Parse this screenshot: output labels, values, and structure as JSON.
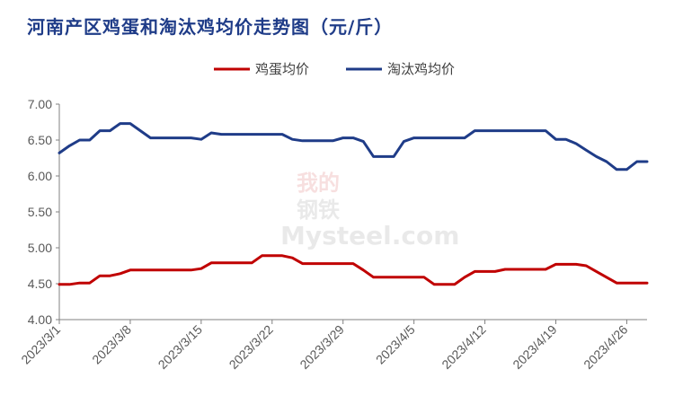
{
  "chart_data": {
    "type": "line",
    "title": "河南产区鸡蛋和淘汰鸡均价走势图（元/斤）",
    "ylim": [
      4.0,
      7.0
    ],
    "yticks": [
      "4.00",
      "4.50",
      "5.00",
      "5.50",
      "6.00",
      "6.50",
      "7.00"
    ],
    "xticks": [
      "2023/3/1",
      "2023/3/8",
      "2023/3/15",
      "2023/3/22",
      "2023/3/29",
      "2023/4/5",
      "2023/4/12",
      "2023/4/19",
      "2023/4/26"
    ],
    "x_range": [
      "2023-03-01",
      "2023-04-28"
    ],
    "legend_position": "top",
    "grid": false,
    "watermark": "Mysteel.com 我的钢铁",
    "series": [
      {
        "name": "鸡蛋均价",
        "color": "#c00000",
        "x": [
          "2023-03-01",
          "2023-03-02",
          "2023-03-03",
          "2023-03-04",
          "2023-03-05",
          "2023-03-06",
          "2023-03-07",
          "2023-03-08",
          "2023-03-09",
          "2023-03-10",
          "2023-03-11",
          "2023-03-12",
          "2023-03-13",
          "2023-03-14",
          "2023-03-15",
          "2023-03-16",
          "2023-03-17",
          "2023-03-18",
          "2023-03-19",
          "2023-03-20",
          "2023-03-21",
          "2023-03-22",
          "2023-03-23",
          "2023-03-24",
          "2023-03-25",
          "2023-03-26",
          "2023-03-27",
          "2023-03-28",
          "2023-03-29",
          "2023-03-30",
          "2023-03-31",
          "2023-04-01",
          "2023-04-02",
          "2023-04-03",
          "2023-04-04",
          "2023-04-05",
          "2023-04-06",
          "2023-04-07",
          "2023-04-08",
          "2023-04-09",
          "2023-04-10",
          "2023-04-11",
          "2023-04-12",
          "2023-04-13",
          "2023-04-14",
          "2023-04-15",
          "2023-04-16",
          "2023-04-17",
          "2023-04-18",
          "2023-04-19",
          "2023-04-20",
          "2023-04-21",
          "2023-04-22",
          "2023-04-23",
          "2023-04-24",
          "2023-04-25",
          "2023-04-26",
          "2023-04-27",
          "2023-04-28"
        ],
        "values": [
          4.49,
          4.49,
          4.51,
          4.51,
          4.61,
          4.61,
          4.64,
          4.69,
          4.69,
          4.69,
          4.69,
          4.69,
          4.69,
          4.69,
          4.71,
          4.79,
          4.79,
          4.79,
          4.79,
          4.79,
          4.89,
          4.89,
          4.89,
          4.86,
          4.78,
          4.78,
          4.78,
          4.78,
          4.78,
          4.78,
          4.69,
          4.59,
          4.59,
          4.59,
          4.59,
          4.59,
          4.59,
          4.49,
          4.49,
          4.49,
          4.59,
          4.67,
          4.67,
          4.67,
          4.7,
          4.7,
          4.7,
          4.7,
          4.7,
          4.77,
          4.77,
          4.77,
          4.75,
          4.67,
          4.59,
          4.51,
          4.51,
          4.51,
          4.51
        ]
      },
      {
        "name": "淘汰鸡均价",
        "color": "#1f3c88",
        "x": [
          "2023-03-01",
          "2023-03-02",
          "2023-03-03",
          "2023-03-04",
          "2023-03-05",
          "2023-03-06",
          "2023-03-07",
          "2023-03-08",
          "2023-03-09",
          "2023-03-10",
          "2023-03-11",
          "2023-03-12",
          "2023-03-13",
          "2023-03-14",
          "2023-03-15",
          "2023-03-16",
          "2023-03-17",
          "2023-03-18",
          "2023-03-19",
          "2023-03-20",
          "2023-03-21",
          "2023-03-22",
          "2023-03-23",
          "2023-03-24",
          "2023-03-25",
          "2023-03-26",
          "2023-03-27",
          "2023-03-28",
          "2023-03-29",
          "2023-03-30",
          "2023-03-31",
          "2023-04-01",
          "2023-04-02",
          "2023-04-03",
          "2023-04-04",
          "2023-04-05",
          "2023-04-06",
          "2023-04-07",
          "2023-04-08",
          "2023-04-09",
          "2023-04-10",
          "2023-04-11",
          "2023-04-12",
          "2023-04-13",
          "2023-04-14",
          "2023-04-15",
          "2023-04-16",
          "2023-04-17",
          "2023-04-18",
          "2023-04-19",
          "2023-04-20",
          "2023-04-21",
          "2023-04-22",
          "2023-04-23",
          "2023-04-24",
          "2023-04-25",
          "2023-04-26",
          "2023-04-27",
          "2023-04-28"
        ],
        "values": [
          6.32,
          6.42,
          6.5,
          6.5,
          6.63,
          6.63,
          6.73,
          6.73,
          6.63,
          6.53,
          6.53,
          6.53,
          6.53,
          6.53,
          6.51,
          6.6,
          6.58,
          6.58,
          6.58,
          6.58,
          6.58,
          6.58,
          6.58,
          6.51,
          6.49,
          6.49,
          6.49,
          6.49,
          6.53,
          6.53,
          6.48,
          6.27,
          6.27,
          6.27,
          6.48,
          6.53,
          6.53,
          6.53,
          6.53,
          6.53,
          6.53,
          6.63,
          6.63,
          6.63,
          6.63,
          6.63,
          6.63,
          6.63,
          6.63,
          6.51,
          6.51,
          6.45,
          6.36,
          6.27,
          6.2,
          6.09,
          6.09,
          6.2,
          6.2
        ]
      }
    ]
  }
}
